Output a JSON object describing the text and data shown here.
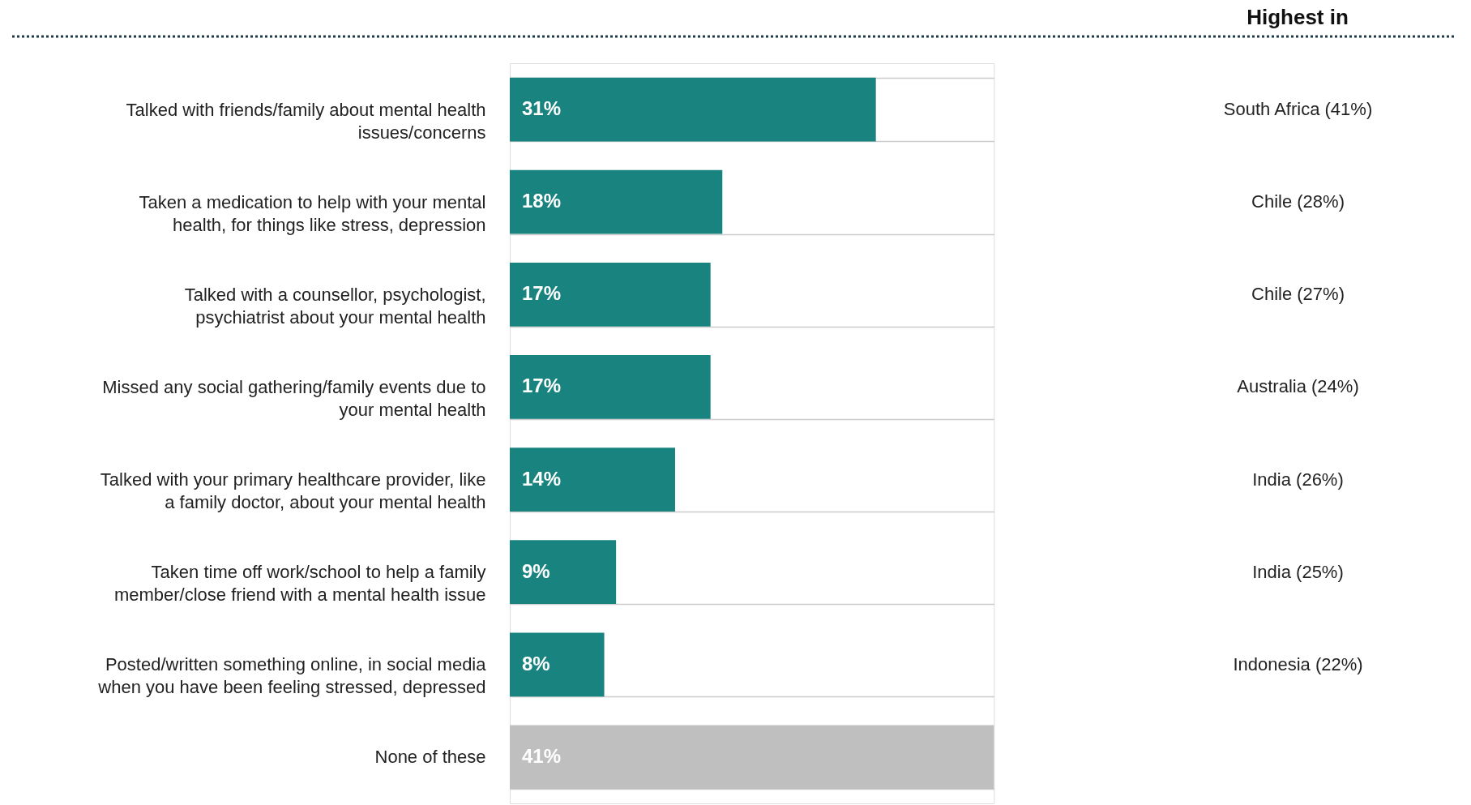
{
  "chart_data": {
    "type": "bar",
    "orientation": "horizontal",
    "data_labels": true,
    "grid": "y",
    "categories": [
      "Talked with friends/family about mental health\nissues/concerns",
      "Taken a medication to help with your mental\nhealth, for things like stress, depression",
      "Talked with a counsellor, psychologist,\npsychiatrist about your mental health",
      "Missed any social gathering/family events due to\nyour mental health",
      "Talked with your primary healthcare provider, like\na family doctor, about your mental health",
      "Taken time off work/school to help a family\nmember/close friend with a mental health issue",
      "Posted/written something online, in social media\nwhen you have been feeling stressed, depressed",
      "None of these"
    ],
    "values": [
      31,
      18,
      17,
      17,
      14,
      9,
      8,
      41
    ],
    "value_labels": [
      "31%",
      "18%",
      "17%",
      "17%",
      "14%",
      "9%",
      "8%",
      "41%"
    ],
    "colors": [
      "#19837f",
      "#19837f",
      "#19837f",
      "#19837f",
      "#19837f",
      "#19837f",
      "#19837f",
      "#bfbfbf"
    ],
    "annotations": [
      "Highest in"
    ],
    "y2_categories": [
      "South Africa (41%)",
      "Chile (28%)",
      "Chile (27%)",
      "Australia (24%)",
      "India (26%)",
      "India (25%)",
      "Indonesia (22%)",
      null
    ]
  }
}
